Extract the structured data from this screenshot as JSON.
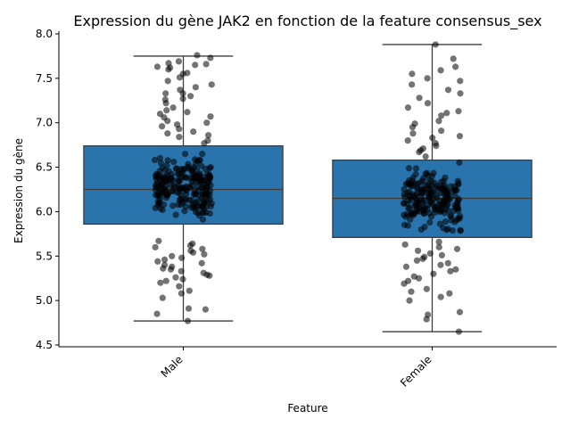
{
  "chart_data": {
    "type": "box",
    "title": "Expression du gène JAK2 en fonction de la feature consensus_sex",
    "xlabel": "Feature",
    "ylabel": "Expression du gène",
    "categories": [
      "Male",
      "Female"
    ],
    "ylim": [
      4.48,
      8.03
    ],
    "yticks": [
      "4.5",
      "5.0",
      "5.5",
      "6.0",
      "6.5",
      "7.0",
      "7.5",
      "8.0"
    ],
    "box_color": "#2a74ad",
    "point_color": "#000000",
    "series": [
      {
        "category": "Male",
        "whisker_low": 4.77,
        "q1": 5.86,
        "median": 6.25,
        "q3": 6.74,
        "whisker_high": 7.75
      },
      {
        "category": "Female",
        "whisker_low": 4.65,
        "q1": 5.71,
        "median": 6.15,
        "q3": 6.58,
        "whisker_high": 7.88
      }
    ],
    "points": {
      "Male": [
        7.76,
        7.73,
        7.69,
        7.67,
        7.66,
        7.65,
        7.63,
        7.62,
        7.6,
        7.56,
        7.55,
        7.51,
        7.47,
        7.43,
        7.4,
        7.37,
        7.33,
        7.33,
        7.3,
        7.27,
        7.26,
        7.22,
        7.17,
        7.14,
        7.12,
        7.1,
        7.07,
        7.06,
        7.02,
        7.0,
        6.98,
        6.96,
        6.93,
        6.9,
        6.88,
        6.86,
        6.84,
        6.8,
        6.77,
        5.67,
        5.64,
        5.62,
        5.6,
        5.58,
        5.56,
        5.54,
        5.52,
        5.5,
        5.48,
        5.46,
        5.44,
        5.42,
        5.4,
        5.38,
        5.36,
        5.35,
        5.33,
        5.31,
        5.29,
        5.28,
        5.26,
        5.24,
        5.22,
        5.2,
        5.16,
        5.11,
        5.08,
        5.03,
        4.91,
        4.9,
        4.85,
        4.77
      ],
      "Female": [
        7.88,
        7.72,
        7.63,
        7.59,
        7.55,
        7.5,
        7.47,
        7.43,
        7.37,
        7.33,
        7.28,
        7.22,
        7.17,
        7.13,
        7.11,
        7.08,
        7.02,
        6.99,
        6.95,
        6.91,
        6.88,
        6.85,
        6.83,
        6.8,
        6.77,
        6.74,
        6.71,
        6.69,
        6.67,
        6.62,
        5.66,
        5.63,
        5.6,
        5.58,
        5.56,
        5.53,
        5.51,
        5.49,
        5.47,
        5.45,
        5.42,
        5.4,
        5.38,
        5.35,
        5.33,
        5.3,
        5.27,
        5.25,
        5.22,
        5.19,
        5.13,
        5.1,
        5.08,
        5.04,
        5.0,
        4.87,
        4.84,
        4.79,
        4.65
      ]
    }
  }
}
